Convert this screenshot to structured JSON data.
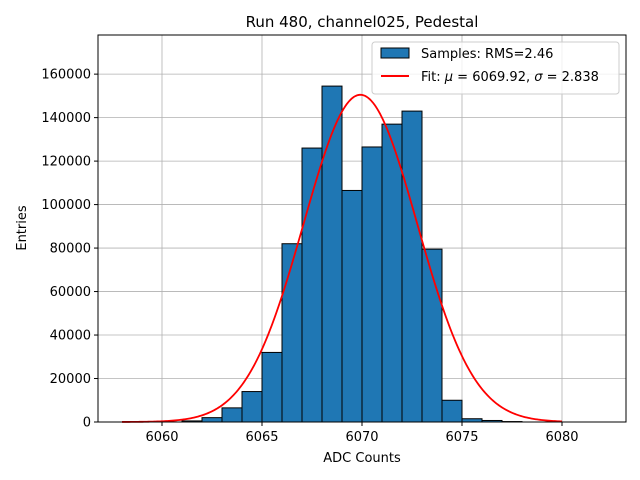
{
  "chart_data": {
    "type": "bar",
    "title": "Run 480, channel025, Pedestal",
    "xlabel": "ADC Counts",
    "ylabel": "Entries",
    "xlim": [
      6056.8,
      6083.2
    ],
    "ylim": [
      0,
      178000
    ],
    "grid": true,
    "legend_position": "top-right",
    "x_ticks": [
      6060,
      6065,
      6070,
      6075,
      6080
    ],
    "y_ticks": [
      0,
      20000,
      40000,
      60000,
      80000,
      100000,
      120000,
      140000,
      160000
    ],
    "histogram": {
      "name": "Samples: RMS=2.46",
      "color": "#1f77b4",
      "edgecolor": "#000000",
      "bin_width": 1,
      "bins": [
        {
          "left": 6061,
          "count": 500
        },
        {
          "left": 6062,
          "count": 2000
        },
        {
          "left": 6063,
          "count": 6500
        },
        {
          "left": 6064,
          "count": 14000
        },
        {
          "left": 6065,
          "count": 32000
        },
        {
          "left": 6066,
          "count": 82000
        },
        {
          "left": 6067,
          "count": 126000
        },
        {
          "left": 6068,
          "count": 154500
        },
        {
          "left": 6069,
          "count": 106500
        },
        {
          "left": 6070,
          "count": 126500
        },
        {
          "left": 6071,
          "count": 137000
        },
        {
          "left": 6072,
          "count": 143000
        },
        {
          "left": 6073,
          "count": 79500
        },
        {
          "left": 6074,
          "count": 10000
        },
        {
          "left": 6075,
          "count": 1500
        },
        {
          "left": 6076,
          "count": 700
        },
        {
          "left": 6077,
          "count": 200
        }
      ]
    },
    "fit": {
      "name_prefix": "Fit: ",
      "name_mu_symbol": "μ",
      "name_mu_value": " = 6069.92, ",
      "name_sigma_symbol": "σ",
      "name_sigma_value": " = 2.838",
      "color": "#ff0000",
      "function": "gaussian",
      "mu": 6069.92,
      "sigma": 2.838,
      "amplitude": 150500,
      "x_range": [
        6058,
        6080
      ]
    }
  }
}
